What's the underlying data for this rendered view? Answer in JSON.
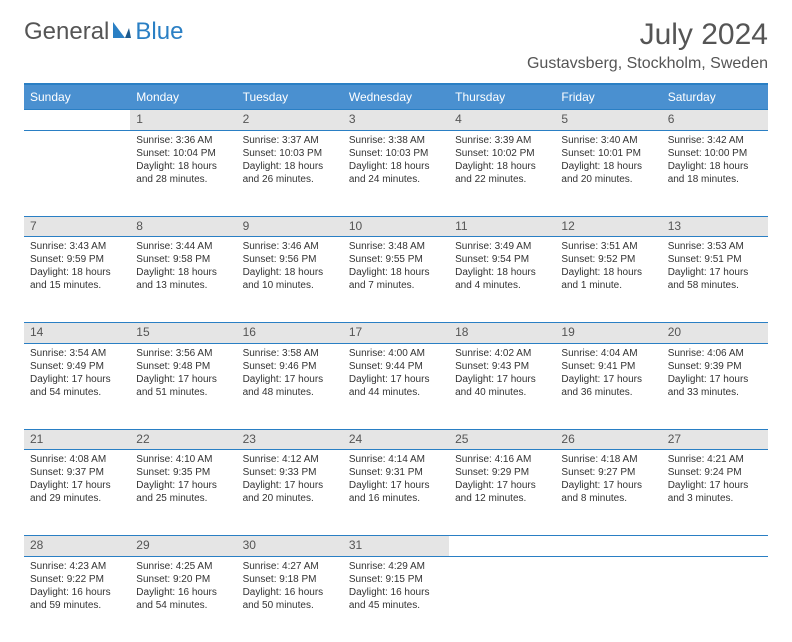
{
  "logo": {
    "part1": "General",
    "part2": "Blue"
  },
  "title": "July 2024",
  "location": "Gustavsberg, Stockholm, Sweden",
  "colors": {
    "header_bg": "#4a90d0",
    "header_text": "#ffffff",
    "border": "#2a7fc4",
    "daynum_bg": "#e5e5e5",
    "text": "#333333",
    "title_text": "#555555"
  },
  "weekdays": [
    "Sunday",
    "Monday",
    "Tuesday",
    "Wednesday",
    "Thursday",
    "Friday",
    "Saturday"
  ],
  "weeks": [
    {
      "nums": [
        "",
        "1",
        "2",
        "3",
        "4",
        "5",
        "6"
      ],
      "cells": [
        null,
        {
          "sunrise": "Sunrise: 3:36 AM",
          "sunset": "Sunset: 10:04 PM",
          "day1": "Daylight: 18 hours",
          "day2": "and 28 minutes."
        },
        {
          "sunrise": "Sunrise: 3:37 AM",
          "sunset": "Sunset: 10:03 PM",
          "day1": "Daylight: 18 hours",
          "day2": "and 26 minutes."
        },
        {
          "sunrise": "Sunrise: 3:38 AM",
          "sunset": "Sunset: 10:03 PM",
          "day1": "Daylight: 18 hours",
          "day2": "and 24 minutes."
        },
        {
          "sunrise": "Sunrise: 3:39 AM",
          "sunset": "Sunset: 10:02 PM",
          "day1": "Daylight: 18 hours",
          "day2": "and 22 minutes."
        },
        {
          "sunrise": "Sunrise: 3:40 AM",
          "sunset": "Sunset: 10:01 PM",
          "day1": "Daylight: 18 hours",
          "day2": "and 20 minutes."
        },
        {
          "sunrise": "Sunrise: 3:42 AM",
          "sunset": "Sunset: 10:00 PM",
          "day1": "Daylight: 18 hours",
          "day2": "and 18 minutes."
        }
      ]
    },
    {
      "nums": [
        "7",
        "8",
        "9",
        "10",
        "11",
        "12",
        "13"
      ],
      "cells": [
        {
          "sunrise": "Sunrise: 3:43 AM",
          "sunset": "Sunset: 9:59 PM",
          "day1": "Daylight: 18 hours",
          "day2": "and 15 minutes."
        },
        {
          "sunrise": "Sunrise: 3:44 AM",
          "sunset": "Sunset: 9:58 PM",
          "day1": "Daylight: 18 hours",
          "day2": "and 13 minutes."
        },
        {
          "sunrise": "Sunrise: 3:46 AM",
          "sunset": "Sunset: 9:56 PM",
          "day1": "Daylight: 18 hours",
          "day2": "and 10 minutes."
        },
        {
          "sunrise": "Sunrise: 3:48 AM",
          "sunset": "Sunset: 9:55 PM",
          "day1": "Daylight: 18 hours",
          "day2": "and 7 minutes."
        },
        {
          "sunrise": "Sunrise: 3:49 AM",
          "sunset": "Sunset: 9:54 PM",
          "day1": "Daylight: 18 hours",
          "day2": "and 4 minutes."
        },
        {
          "sunrise": "Sunrise: 3:51 AM",
          "sunset": "Sunset: 9:52 PM",
          "day1": "Daylight: 18 hours",
          "day2": "and 1 minute."
        },
        {
          "sunrise": "Sunrise: 3:53 AM",
          "sunset": "Sunset: 9:51 PM",
          "day1": "Daylight: 17 hours",
          "day2": "and 58 minutes."
        }
      ]
    },
    {
      "nums": [
        "14",
        "15",
        "16",
        "17",
        "18",
        "19",
        "20"
      ],
      "cells": [
        {
          "sunrise": "Sunrise: 3:54 AM",
          "sunset": "Sunset: 9:49 PM",
          "day1": "Daylight: 17 hours",
          "day2": "and 54 minutes."
        },
        {
          "sunrise": "Sunrise: 3:56 AM",
          "sunset": "Sunset: 9:48 PM",
          "day1": "Daylight: 17 hours",
          "day2": "and 51 minutes."
        },
        {
          "sunrise": "Sunrise: 3:58 AM",
          "sunset": "Sunset: 9:46 PM",
          "day1": "Daylight: 17 hours",
          "day2": "and 48 minutes."
        },
        {
          "sunrise": "Sunrise: 4:00 AM",
          "sunset": "Sunset: 9:44 PM",
          "day1": "Daylight: 17 hours",
          "day2": "and 44 minutes."
        },
        {
          "sunrise": "Sunrise: 4:02 AM",
          "sunset": "Sunset: 9:43 PM",
          "day1": "Daylight: 17 hours",
          "day2": "and 40 minutes."
        },
        {
          "sunrise": "Sunrise: 4:04 AM",
          "sunset": "Sunset: 9:41 PM",
          "day1": "Daylight: 17 hours",
          "day2": "and 36 minutes."
        },
        {
          "sunrise": "Sunrise: 4:06 AM",
          "sunset": "Sunset: 9:39 PM",
          "day1": "Daylight: 17 hours",
          "day2": "and 33 minutes."
        }
      ]
    },
    {
      "nums": [
        "21",
        "22",
        "23",
        "24",
        "25",
        "26",
        "27"
      ],
      "cells": [
        {
          "sunrise": "Sunrise: 4:08 AM",
          "sunset": "Sunset: 9:37 PM",
          "day1": "Daylight: 17 hours",
          "day2": "and 29 minutes."
        },
        {
          "sunrise": "Sunrise: 4:10 AM",
          "sunset": "Sunset: 9:35 PM",
          "day1": "Daylight: 17 hours",
          "day2": "and 25 minutes."
        },
        {
          "sunrise": "Sunrise: 4:12 AM",
          "sunset": "Sunset: 9:33 PM",
          "day1": "Daylight: 17 hours",
          "day2": "and 20 minutes."
        },
        {
          "sunrise": "Sunrise: 4:14 AM",
          "sunset": "Sunset: 9:31 PM",
          "day1": "Daylight: 17 hours",
          "day2": "and 16 minutes."
        },
        {
          "sunrise": "Sunrise: 4:16 AM",
          "sunset": "Sunset: 9:29 PM",
          "day1": "Daylight: 17 hours",
          "day2": "and 12 minutes."
        },
        {
          "sunrise": "Sunrise: 4:18 AM",
          "sunset": "Sunset: 9:27 PM",
          "day1": "Daylight: 17 hours",
          "day2": "and 8 minutes."
        },
        {
          "sunrise": "Sunrise: 4:21 AM",
          "sunset": "Sunset: 9:24 PM",
          "day1": "Daylight: 17 hours",
          "day2": "and 3 minutes."
        }
      ]
    },
    {
      "nums": [
        "28",
        "29",
        "30",
        "31",
        "",
        "",
        ""
      ],
      "cells": [
        {
          "sunrise": "Sunrise: 4:23 AM",
          "sunset": "Sunset: 9:22 PM",
          "day1": "Daylight: 16 hours",
          "day2": "and 59 minutes."
        },
        {
          "sunrise": "Sunrise: 4:25 AM",
          "sunset": "Sunset: 9:20 PM",
          "day1": "Daylight: 16 hours",
          "day2": "and 54 minutes."
        },
        {
          "sunrise": "Sunrise: 4:27 AM",
          "sunset": "Sunset: 9:18 PM",
          "day1": "Daylight: 16 hours",
          "day2": "and 50 minutes."
        },
        {
          "sunrise": "Sunrise: 4:29 AM",
          "sunset": "Sunset: 9:15 PM",
          "day1": "Daylight: 16 hours",
          "day2": "and 45 minutes."
        },
        null,
        null,
        null
      ]
    }
  ]
}
